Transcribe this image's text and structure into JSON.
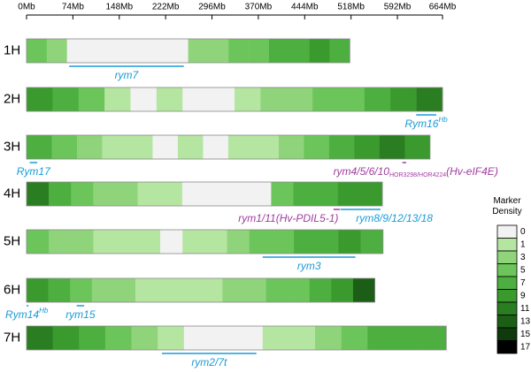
{
  "chart_data": {
    "type": "ideogram",
    "xlim": [
      0,
      664
    ],
    "xticks": [
      {
        "value": 0,
        "label": "0Mb"
      },
      {
        "value": 74,
        "label": "74Mb"
      },
      {
        "value": 148,
        "label": "148Mb"
      },
      {
        "value": 222,
        "label": "222Mb"
      },
      {
        "value": 296,
        "label": "296Mb"
      },
      {
        "value": 370,
        "label": "370Mb"
      },
      {
        "value": 444,
        "label": "444Mb"
      },
      {
        "value": 518,
        "label": "518Mb"
      },
      {
        "value": 592,
        "label": "592Mb"
      },
      {
        "value": 664,
        "label": "664Mb"
      }
    ],
    "chromosomes": [
      {
        "name": "1H",
        "length": 516,
        "density": [
          5,
          3,
          0,
          0,
          0,
          0,
          0,
          0,
          3,
          3,
          5,
          5,
          7,
          7,
          9,
          7
        ]
      },
      {
        "name": "2H",
        "length": 664,
        "density": [
          9,
          7,
          5,
          1,
          0,
          1,
          0,
          0,
          1,
          3,
          3,
          5,
          5,
          7,
          9,
          11
        ]
      },
      {
        "name": "3H",
        "length": 644,
        "density": [
          7,
          5,
          3,
          1,
          1,
          0,
          1,
          0,
          1,
          1,
          3,
          5,
          7,
          9,
          11,
          9
        ]
      },
      {
        "name": "4H",
        "length": 568,
        "density": [
          11,
          7,
          5,
          3,
          3,
          1,
          1,
          0,
          0,
          0,
          0,
          5,
          7,
          7,
          9,
          9
        ]
      },
      {
        "name": "5H",
        "length": 569,
        "density": [
          5,
          3,
          3,
          1,
          1,
          1,
          0,
          1,
          1,
          3,
          5,
          5,
          7,
          7,
          9,
          7
        ]
      },
      {
        "name": "6H",
        "length": 556,
        "density": [
          9,
          7,
          5,
          3,
          3,
          1,
          1,
          1,
          1,
          3,
          3,
          5,
          5,
          7,
          9,
          13
        ]
      },
      {
        "name": "7H",
        "length": 670,
        "density": [
          11,
          9,
          7,
          5,
          3,
          1,
          0,
          0,
          0,
          1,
          1,
          3,
          5,
          7,
          7,
          7
        ]
      }
    ],
    "annotations": [
      {
        "chromosome": "1H",
        "start": 68,
        "end": 251,
        "color": "#1a9bd7",
        "label": [
          {
            "text": "rym7"
          }
        ]
      },
      {
        "chromosome": "2H",
        "start": 622,
        "end": 654,
        "color": "#1a9bd7",
        "label": [
          {
            "text": "Rym16"
          },
          {
            "text": "Hb",
            "shift": "sup"
          }
        ]
      },
      {
        "chromosome": "3H",
        "start": 5,
        "end": 17,
        "color": "#1a9bd7",
        "label": [
          {
            "text": "Rym17"
          }
        ]
      },
      {
        "chromosome": "3H",
        "start": 600,
        "end": 606,
        "color": "#a03ca0",
        "label": [
          {
            "text": "rym4/5/6/10"
          },
          {
            "text": "HOR3298/HOR4224",
            "shift": "sub"
          },
          {
            "text": "(Hv-eIF4E)"
          }
        ]
      },
      {
        "chromosome": "4H",
        "start": 490,
        "end": 500,
        "color": "#a03ca0",
        "label": [
          {
            "text": "rym1/11(Hv-PDIL5-1)"
          }
        ]
      },
      {
        "chromosome": "4H",
        "start": 501,
        "end": 565,
        "color": "#1a9bd7",
        "label": [
          {
            "text": "rym8/9/12/13/18"
          }
        ]
      },
      {
        "chromosome": "5H",
        "start": 377,
        "end": 525,
        "color": "#1a9bd7",
        "label": [
          {
            "text": "rym3"
          }
        ]
      },
      {
        "chromosome": "6H",
        "start": 0,
        "end": 3,
        "color": "#1a9bd7",
        "label": [
          {
            "text": "Rym14"
          },
          {
            "text": "Hb",
            "shift": "sup"
          }
        ]
      },
      {
        "chromosome": "6H",
        "start": 80,
        "end": 92,
        "color": "#1a9bd7",
        "label": [
          {
            "text": "rym15"
          }
        ]
      },
      {
        "chromosome": "7H",
        "start": 216,
        "end": 367,
        "color": "#1a9bd7",
        "label": [
          {
            "text": "rym2/7t"
          }
        ]
      }
    ],
    "legend": {
      "title": "Marker Density",
      "scale": [
        {
          "value": 0,
          "color": "#f2f2f2"
        },
        {
          "value": 1,
          "color": "#b5e6a1"
        },
        {
          "value": 3,
          "color": "#8fd47a"
        },
        {
          "value": 5,
          "color": "#6cc55a"
        },
        {
          "value": 7,
          "color": "#4daf3f"
        },
        {
          "value": 9,
          "color": "#3a9a2e"
        },
        {
          "value": 11,
          "color": "#2a7d20"
        },
        {
          "value": 13,
          "color": "#1d5e16"
        },
        {
          "value": 15,
          "color": "#0f3a0c"
        },
        {
          "value": 17,
          "color": "#000000"
        }
      ]
    }
  }
}
